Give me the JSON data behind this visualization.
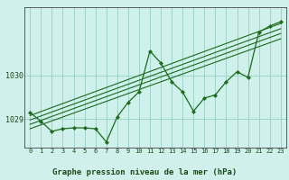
{
  "title": "Graphe pression niveau de la mer (hPa)",
  "bg_color": "#cff0eb",
  "grid_color": "#9dd4cc",
  "line_color": "#1a6b1a",
  "label_color": "#1a4a1a",
  "x_hours": [
    0,
    1,
    2,
    3,
    4,
    5,
    6,
    7,
    8,
    9,
    10,
    11,
    12,
    13,
    14,
    15,
    16,
    17,
    18,
    19,
    20,
    21,
    22,
    23
  ],
  "main_line": [
    1029.15,
    1028.95,
    1028.72,
    1028.78,
    1028.8,
    1028.8,
    1028.78,
    1028.48,
    1029.05,
    1029.38,
    1029.62,
    1030.55,
    1030.28,
    1029.85,
    1029.62,
    1029.18,
    1029.48,
    1029.55,
    1029.85,
    1030.08,
    1029.95,
    1030.98,
    1031.12,
    1031.22
  ],
  "trends": [
    [
      [
        0,
        1029.08
      ],
      [
        23,
        1031.18
      ]
    ],
    [
      [
        0,
        1028.98
      ],
      [
        23,
        1031.06
      ]
    ],
    [
      [
        0,
        1028.88
      ],
      [
        23,
        1030.95
      ]
    ],
    [
      [
        0,
        1028.78
      ],
      [
        23,
        1030.83
      ]
    ]
  ],
  "ylim_min": 1028.35,
  "ylim_max": 1031.55,
  "yticks": [
    1029,
    1030
  ],
  "xticks": [
    0,
    1,
    2,
    3,
    4,
    5,
    6,
    7,
    8,
    9,
    10,
    11,
    12,
    13,
    14,
    15,
    16,
    17,
    18,
    19,
    20,
    21,
    22,
    23
  ],
  "title_fontsize": 6.5,
  "tick_fontsize": 5.0,
  "ytick_fontsize": 6.0
}
